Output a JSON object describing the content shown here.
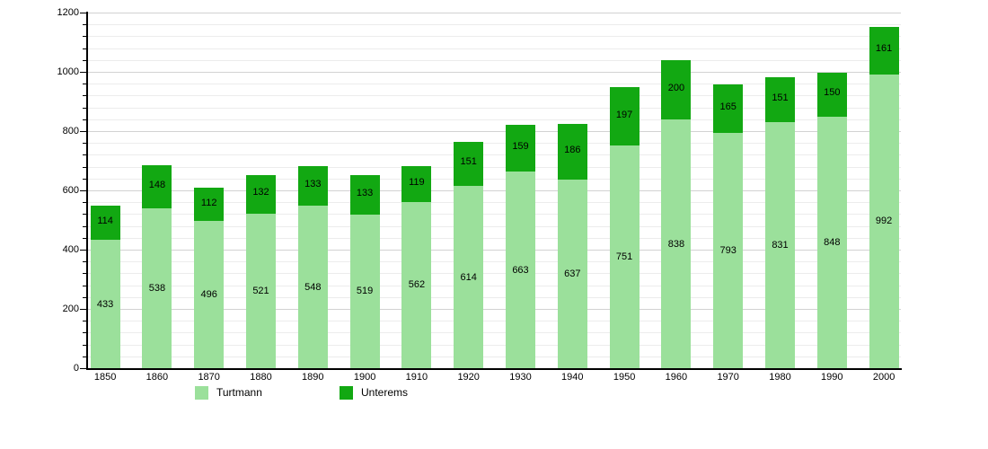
{
  "chart_data": {
    "type": "bar",
    "stacked": true,
    "categories": [
      "1850",
      "1860",
      "1870",
      "1880",
      "1890",
      "1900",
      "1910",
      "1920",
      "1930",
      "1940",
      "1950",
      "1960",
      "1970",
      "1980",
      "1990",
      "2000"
    ],
    "series": [
      {
        "name": "Turtmann",
        "color": "#9be09b",
        "values": [
          433,
          538,
          496,
          521,
          548,
          519,
          562,
          614,
          663,
          637,
          751,
          838,
          793,
          831,
          848,
          992
        ]
      },
      {
        "name": "Unterems",
        "color": "#12a812",
        "values": [
          114,
          148,
          112,
          132,
          133,
          133,
          119,
          151,
          159,
          186,
          197,
          200,
          165,
          151,
          150,
          161
        ]
      }
    ],
    "xlabel": "",
    "ylabel": "",
    "ylim": [
      0,
      1200
    ],
    "y_tick_labels": [
      "0",
      "200",
      "400",
      "600",
      "800",
      "1000",
      "1200"
    ],
    "y_major_step": 200,
    "y_minor_step": 40,
    "grid": true,
    "legend_position": "bottom",
    "colors": {
      "axis": "#000000",
      "grid_major": "#d2d2d2",
      "grid_minor": "#ececec",
      "value_label": "#000000",
      "background": "#ffffff"
    }
  },
  "legend": {
    "items": [
      {
        "label": "Turtmann",
        "color": "#9be09b"
      },
      {
        "label": "Unterems",
        "color": "#12a812"
      }
    ]
  }
}
